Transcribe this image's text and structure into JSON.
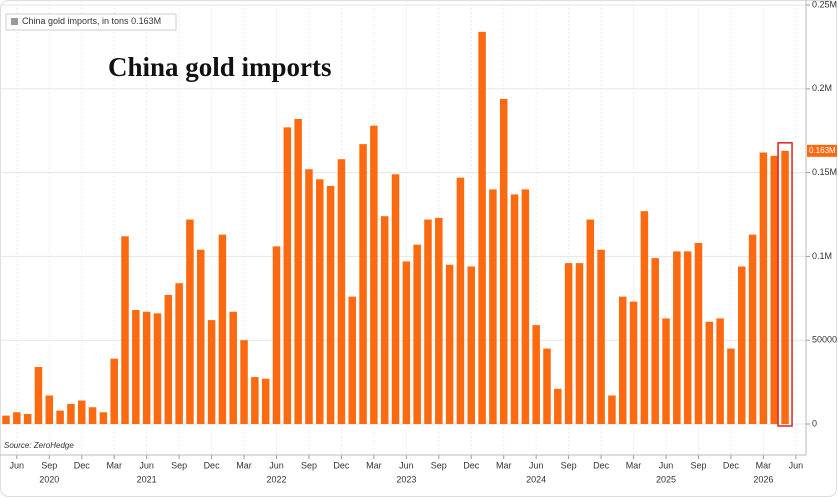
{
  "chart_data": {
    "type": "bar",
    "title": "China gold imports",
    "source": "Source: ZeroHedge",
    "categories": [
      null,
      "Jun",
      null,
      null,
      "Sep",
      null,
      null,
      "Dec",
      null,
      null,
      "Mar",
      null,
      null,
      "Jun",
      null,
      null,
      "Sep",
      null,
      null,
      "Dec",
      null,
      null,
      "Mar",
      null,
      null,
      "Jun",
      null,
      null,
      "Sep",
      null,
      null,
      "Dec",
      null,
      null,
      "Mar",
      null,
      null,
      "Jun",
      null,
      null,
      "Sep",
      null,
      null,
      "Dec",
      null,
      null,
      "Mar",
      null,
      null,
      "Jun",
      null,
      null,
      "Sep",
      null,
      null,
      "Dec",
      null,
      null,
      "Mar",
      null,
      null,
      "Jun",
      null,
      null,
      "Sep",
      null,
      null,
      "Dec",
      null,
      null,
      "Mar",
      null,
      null,
      "Jun"
    ],
    "category_groups": [
      null,
      null,
      null,
      null,
      "2020",
      null,
      null,
      null,
      null,
      null,
      null,
      null,
      null,
      "2021",
      null,
      null,
      null,
      null,
      null,
      null,
      null,
      null,
      null,
      null,
      null,
      "2022",
      null,
      null,
      null,
      null,
      null,
      null,
      null,
      null,
      null,
      null,
      null,
      "2023",
      null,
      null,
      null,
      null,
      null,
      null,
      null,
      null,
      null,
      null,
      null,
      "2024",
      null,
      null,
      null,
      null,
      null,
      null,
      null,
      null,
      null,
      null,
      null,
      "2025",
      null,
      null,
      null,
      null,
      null,
      null,
      null,
      null,
      "2026",
      null,
      null,
      null
    ],
    "series": [
      {
        "name": "China gold imports, in tons",
        "color": "#fb6a10",
        "values": [
          5000,
          7000,
          6000,
          34000,
          17000,
          8000,
          12000,
          14000,
          10000,
          7000,
          39000,
          112000,
          68000,
          67000,
          66000,
          77000,
          84000,
          122000,
          104000,
          62000,
          113000,
          67000,
          50000,
          28000,
          27000,
          106000,
          177000,
          182000,
          152000,
          146000,
          142000,
          158000,
          76000,
          167000,
          178000,
          124000,
          149000,
          97000,
          107000,
          122000,
          123000,
          95000,
          147000,
          94000,
          234000,
          140000,
          194000,
          137000,
          140000,
          59000,
          45000,
          21000,
          96000,
          96000,
          122000,
          104000,
          17000,
          76000,
          73000,
          127000,
          99000,
          63000,
          103000,
          103000,
          108000,
          61000,
          63000,
          45000,
          94000,
          113000,
          162000,
          160000,
          163000,
          null
        ],
        "value_labels": [
          null,
          null,
          null,
          null,
          null,
          null,
          null,
          null,
          null,
          null,
          null,
          null,
          null,
          null,
          null,
          null,
          null,
          null,
          null,
          null,
          null,
          null,
          null,
          null,
          null,
          null,
          null,
          null,
          null,
          null,
          null,
          null,
          null,
          null,
          null,
          null,
          null,
          null,
          null,
          null,
          null,
          null,
          null,
          null,
          null,
          null,
          null,
          null,
          null,
          null,
          null,
          null,
          null,
          null,
          null,
          null,
          null,
          null,
          null,
          null,
          null,
          null,
          null,
          null,
          null,
          null,
          null,
          null,
          null,
          null,
          null,
          null,
          "0.163M",
          null
        ]
      }
    ],
    "ylim": [
      -18500,
      253000
    ],
    "yticks": [
      0,
      50000,
      {
        "value": 100000,
        "label": "0.1M"
      },
      {
        "value": 150000,
        "label": "0.15M"
      },
      {
        "value": 200000,
        "label": "0.2M"
      },
      {
        "value": 250000,
        "label": "0.25M"
      }
    ],
    "grid": true
  }
}
